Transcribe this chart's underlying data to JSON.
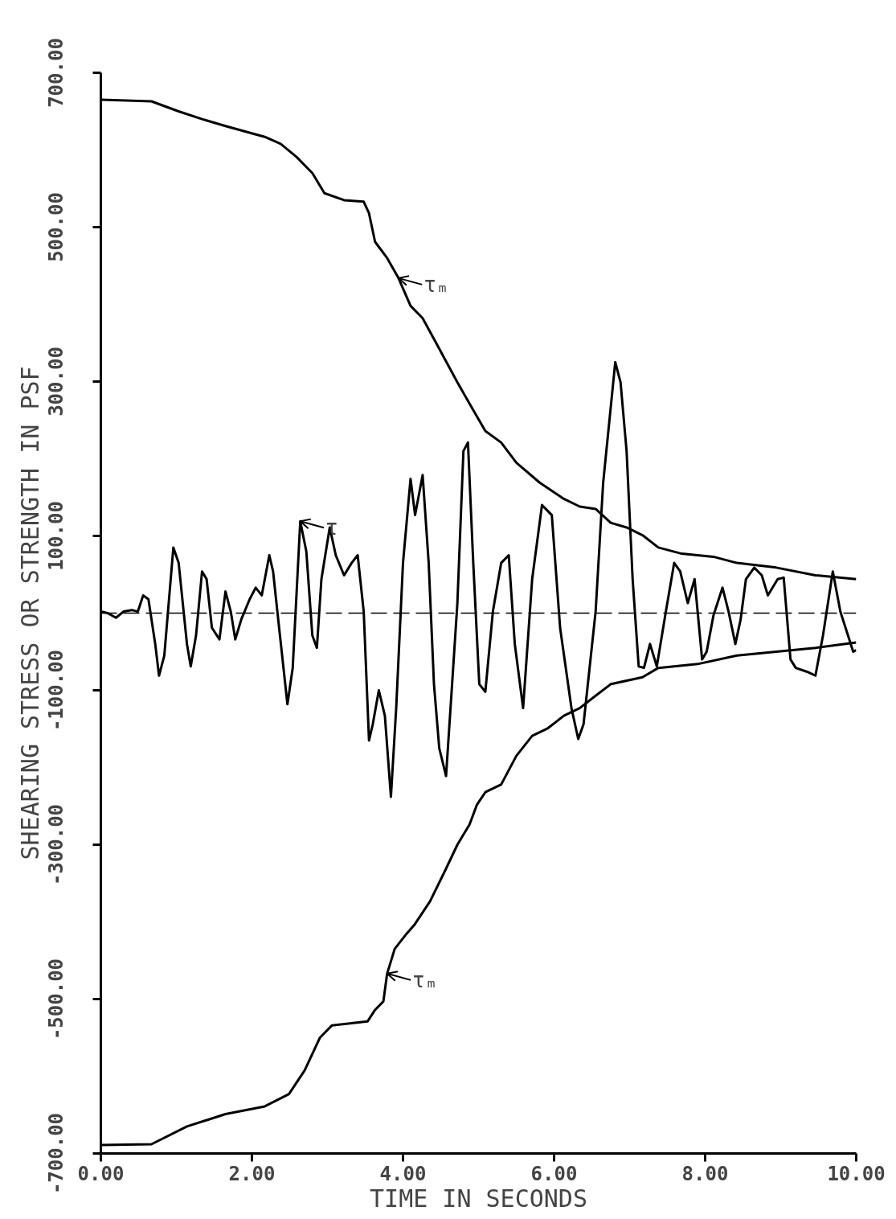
{
  "chart_data": {
    "type": "line",
    "xlabel": "TIME IN SECONDS",
    "ylabel": "SHEARING STRESS OR STRENGTH IN PSF",
    "xlim": [
      0,
      10
    ],
    "ylim": [
      -700,
      700
    ],
    "xticks": [
      {
        "value": 0,
        "label": "0.00"
      },
      {
        "value": 2,
        "label": "2.00"
      },
      {
        "value": 4,
        "label": "4.00"
      },
      {
        "value": 6,
        "label": "6.00"
      },
      {
        "value": 8,
        "label": "8.00"
      },
      {
        "value": 10,
        "label": "10.00"
      }
    ],
    "yticks": [
      {
        "value": -700,
        "label": "-700.00"
      },
      {
        "value": -500,
        "label": "-500.00"
      },
      {
        "value": -300,
        "label": "-300.00"
      },
      {
        "value": -100,
        "label": "-100.00"
      },
      {
        "value": 100,
        "label": "100.00"
      },
      {
        "value": 300,
        "label": "300.00"
      },
      {
        "value": 500,
        "label": "500.00"
      },
      {
        "value": 700,
        "label": "700.00"
      }
    ],
    "grid": false,
    "line_style": "solid",
    "series": [
      {
        "color": "#000000",
        "x": [
          0,
          0.67,
          1.03,
          1.34,
          1.65,
          2.17,
          2.38,
          2.59,
          2.8,
          2.96,
          3.22,
          3.48,
          3.55,
          3.63,
          3.79,
          3.94,
          4.1,
          4.26,
          4.46,
          4.72,
          4.93,
          5.09,
          5.3,
          5.5,
          5.81,
          6.13,
          6.34,
          6.55,
          6.75,
          6.96,
          7.17,
          7.38,
          7.69,
          8.11,
          8.42,
          8.94,
          9.46,
          10
        ],
        "values": [
          665,
          663,
          650,
          640,
          631,
          617,
          608,
          591,
          570,
          544,
          535,
          533,
          518,
          481,
          460,
          434,
          398,
          382,
          346,
          299,
          263,
          236,
          221,
          195,
          169,
          148,
          138,
          135,
          117,
          111,
          101,
          85,
          77,
          73,
          65,
          59,
          49,
          44
        ]
      },
      {
        "color": "#000000",
        "x": [
          0,
          0.67,
          1.14,
          1.65,
          2.17,
          2.49,
          2.7,
          2.9,
          3.06,
          3.53,
          3.63,
          3.74,
          3.79,
          3.89,
          4.05,
          4.15,
          4.36,
          4.57,
          4.72,
          4.88,
          4.98,
          5.09,
          5.3,
          5.5,
          5.71,
          5.92,
          6.13,
          6.34,
          6.55,
          6.75,
          7.17,
          7.38,
          7.9,
          8.42,
          8.94,
          9.46,
          10
        ],
        "values": [
          -689,
          -688,
          -665,
          -649,
          -639,
          -623,
          -592,
          -550,
          -534,
          -529,
          -514,
          -503,
          -467,
          -435,
          -415,
          -404,
          -373,
          -331,
          -300,
          -274,
          -248,
          -232,
          -222,
          -185,
          -159,
          -149,
          -133,
          -123,
          -107,
          -92,
          -83,
          -71,
          -66,
          -55,
          -50,
          -45,
          -38
        ]
      },
      {
        "color": "#000000",
        "x": [
          0,
          0.09,
          0.2,
          0.3,
          0.41,
          0.49,
          0.56,
          0.63,
          0.72,
          0.77,
          0.84,
          0.96,
          1.03,
          1.14,
          1.19,
          1.26,
          1.34,
          1.4,
          1.47,
          1.57,
          1.65,
          1.72,
          1.78,
          1.86,
          1.97,
          2.05,
          2.13,
          2.23,
          2.28,
          2.36,
          2.47,
          2.54,
          2.64,
          2.72,
          2.8,
          2.86,
          2.92,
          3.03,
          3.11,
          3.22,
          3.32,
          3.4,
          3.48,
          3.55,
          3.6,
          3.68,
          3.76,
          3.84,
          3.91,
          4.0,
          4.1,
          4.16,
          4.26,
          4.34,
          4.41,
          4.48,
          4.57,
          4.65,
          4.72,
          4.8,
          4.86,
          4.93,
          5.01,
          5.09,
          5.19,
          5.3,
          5.4,
          5.48,
          5.59,
          5.71,
          5.84,
          5.97,
          6.08,
          6.23,
          6.32,
          6.39,
          6.55,
          6.65,
          6.81,
          6.88,
          6.96,
          7.04,
          7.12,
          7.19,
          7.27,
          7.36,
          7.48,
          7.59,
          7.67,
          7.77,
          7.86,
          7.96,
          8.02,
          8.11,
          8.23,
          8.31,
          8.4,
          8.47,
          8.54,
          8.65,
          8.75,
          8.83,
          8.96,
          9.04,
          9.13,
          9.2,
          9.35,
          9.46,
          9.56,
          9.69,
          9.79,
          9.96,
          10
        ],
        "values": [
          2,
          0,
          -6,
          2,
          4,
          2,
          23,
          18,
          -40,
          -81,
          -55,
          85,
          65,
          -40,
          -69,
          -29,
          54,
          44,
          -19,
          -34,
          28,
          2,
          -34,
          -8,
          18,
          33,
          23,
          75,
          54,
          -19,
          -118,
          -71,
          119,
          80,
          -29,
          -45,
          44,
          111,
          75,
          49,
          65,
          75,
          2,
          -165,
          -144,
          -100,
          -133,
          -238,
          -123,
          65,
          174,
          127,
          179,
          65,
          -92,
          -175,
          -211,
          -92,
          13,
          210,
          221,
          65,
          -92,
          -102,
          2,
          65,
          75,
          -40,
          -123,
          44,
          140,
          127,
          -19,
          -123,
          -163,
          -144,
          2,
          169,
          325,
          299,
          210,
          44,
          -69,
          -71,
          -40,
          -69,
          2,
          65,
          54,
          13,
          44,
          -60,
          -50,
          -3,
          33,
          2,
          -40,
          -8,
          44,
          59,
          49,
          23,
          44,
          46,
          -60,
          -71,
          -76,
          -81,
          -29,
          54,
          2,
          -50,
          -48
        ]
      }
    ],
    "ref_lines": [
      {
        "axis": "y",
        "value": 0,
        "line_style": "dashed",
        "color": "#000000"
      }
    ],
    "annotations": [
      {
        "text": "τₘ",
        "x": 3.94,
        "y": 434
      },
      {
        "text": "τ",
        "x": 2.64,
        "y": 119
      },
      {
        "text": "τₘ",
        "x": 3.79,
        "y": -467
      }
    ]
  }
}
